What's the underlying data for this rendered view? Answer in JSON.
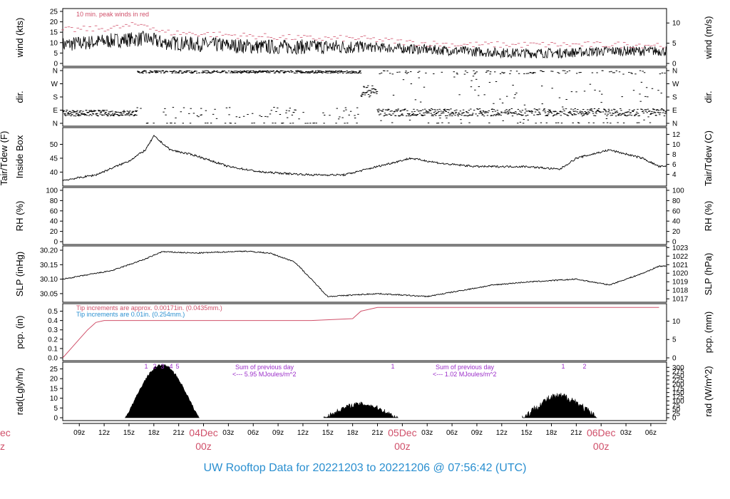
{
  "colors": {
    "peak": "#d0506a",
    "line": "#000000",
    "precip_red": "#d0506a",
    "precip_blue": "#2a8fd0",
    "purple": "#9b2ec9",
    "title": "#2a8fd0",
    "date": "#d0506a"
  },
  "footer": {
    "text": "UW Rooftop Data for 20221203  to  20221206 @ 07:56:42  (UTC)"
  },
  "x_axis": {
    "hour_labels": [
      "09z",
      "12z",
      "15z",
      "18z",
      "21z",
      "03z",
      "06z",
      "09z",
      "12z",
      "15z",
      "18z",
      "21z",
      "03z",
      "06z",
      "09z",
      "12z",
      "15z",
      "18z",
      "21z",
      "03z",
      "06z"
    ],
    "dates": [
      {
        "day": "04Dec",
        "sub": "00z"
      },
      {
        "day": "05Dec",
        "sub": "00z"
      },
      {
        "day": "06Dec",
        "sub": "00z"
      }
    ],
    "left_partial": {
      "day": "ec",
      "sub": "z"
    }
  },
  "panels": {
    "wind": {
      "ylabel_left": "wind (kts)",
      "ylabel_right": "wind (m/s)",
      "left_ticks": [
        "0",
        "5",
        "10",
        "15",
        "20",
        "25"
      ],
      "right_ticks": [
        "0",
        "5",
        "10"
      ],
      "note": "10 min. peak winds in red"
    },
    "dir": {
      "ylabel_left": "dir.",
      "ylabel_right": "dir.",
      "ticks": [
        "N",
        "E",
        "S",
        "W",
        "N"
      ]
    },
    "temp": {
      "ylabel_left_1": "Tair/Tdew (F)",
      "ylabel_left_2": "Inside Box",
      "ylabel_right": "Tair/Tdew (C)",
      "left_ticks": [
        "40",
        "45",
        "50"
      ],
      "right_ticks": [
        "4",
        "6",
        "8",
        "10",
        "12"
      ]
    },
    "rh": {
      "ylabel_left": "RH (%)",
      "ylabel_right": "RH (%)",
      "ticks": [
        "0",
        "20",
        "40",
        "60",
        "80",
        "100"
      ]
    },
    "slp": {
      "ylabel_left": "SLP (inHg)",
      "ylabel_right": "SLP (hPa)",
      "left_ticks": [
        "30.05",
        "30.10",
        "30.15",
        "30.20"
      ],
      "right_ticks": [
        "1017",
        "1018",
        "1019",
        "1020",
        "1021",
        "1022",
        "1023"
      ]
    },
    "pcp": {
      "ylabel_left": "pcp. (in)",
      "ylabel_right": "pcp. (mm)",
      "left_ticks": [
        "0.0",
        "0.1",
        "0.2",
        "0.3",
        "0.4",
        "0.5"
      ],
      "right_ticks": [
        "0",
        "5",
        "10"
      ],
      "note_red": "Tip increments are approx. 0.00171in. (0.0435mm.)",
      "note_blue": "Tip increments are 0.01in. (0.254mm.)"
    },
    "rad": {
      "ylabel_left": "rad(Lgly/hr)",
      "ylabel_right": "rad (W/m^2)",
      "left_ticks": [
        "0",
        "5",
        "10",
        "15",
        "20",
        "25"
      ],
      "right_ticks": [
        "0",
        "25",
        "50",
        "75",
        "100",
        "125",
        "150",
        "175",
        "200",
        "225",
        "250",
        "275",
        "300"
      ],
      "sum_label": "Sum of previous day",
      "sums": [
        "<--- 5.95 MJoules/m^2",
        "<--- 1.02 MJoules/m^2"
      ],
      "day1_markers": [
        "1",
        "2",
        "3",
        "4",
        "5"
      ],
      "day2_markers": [
        "1"
      ],
      "day3_markers": [
        "1",
        "2"
      ]
    }
  },
  "chart_data": {
    "type": "line",
    "title": "UW Rooftop Data for 20221203  to  20221206 @ 07:56:42  (UTC)",
    "x_range_hours_utc": [
      "2022-12-03 07:00",
      "2022-12-06 07:56"
    ],
    "series": [
      {
        "name": "wind (kts)",
        "time_hours_from_start": [
          0,
          6,
          10,
          12,
          18,
          24,
          30,
          36,
          42,
          48,
          54,
          60,
          66,
          72
        ],
        "values": [
          9,
          11,
          12,
          10,
          9,
          8,
          8,
          8,
          7,
          6,
          5,
          5,
          6,
          6
        ],
        "ylim": [
          0,
          25
        ]
      },
      {
        "name": "10 min. peak winds",
        "time_hours_from_start": [
          0,
          6,
          10,
          12,
          18,
          24,
          30,
          36,
          42,
          48,
          54,
          60,
          66,
          72
        ],
        "values": [
          16,
          17,
          19,
          15,
          14,
          13,
          12,
          12,
          10,
          9,
          9,
          9,
          9,
          9
        ]
      },
      {
        "name": "Tair/Tdew (F)",
        "time_hours_from_start": [
          0,
          4,
          8,
          10,
          11,
          13,
          16,
          20,
          24,
          30,
          34,
          38,
          42,
          46,
          50,
          56,
          60,
          62,
          66,
          70,
          72
        ],
        "values": [
          37,
          39,
          44,
          48,
          53,
          48,
          46,
          42,
          40,
          39,
          39,
          42,
          45,
          43,
          42,
          42,
          41,
          45,
          48,
          45,
          42
        ],
        "ylim": [
          36,
          55
        ]
      },
      {
        "name": "SLP (inHg)",
        "time_hours_from_start": [
          0,
          6,
          10,
          12,
          16,
          22,
          25,
          28,
          32,
          38,
          44,
          48,
          52,
          56,
          62,
          66,
          70,
          72
        ],
        "values": [
          30.1,
          30.13,
          30.17,
          30.195,
          30.19,
          30.197,
          30.19,
          30.16,
          30.04,
          30.05,
          30.04,
          30.06,
          30.08,
          30.09,
          30.1,
          30.08,
          30.12,
          30.145
        ],
        "ylim": [
          30.03,
          30.21
        ]
      },
      {
        "name": "pcp. (in)",
        "time_hours_from_start": [
          0,
          1,
          2,
          3,
          4,
          5,
          6,
          8,
          30,
          35,
          36,
          38,
          42,
          72
        ],
        "values": [
          0.0,
          0.1,
          0.2,
          0.3,
          0.38,
          0.4,
          0.4,
          0.4,
          0.4,
          0.42,
          0.5,
          0.54,
          0.54,
          0.54
        ],
        "ylim": [
          0,
          0.55
        ]
      },
      {
        "name": "rad (Lgly/hr)",
        "days": [
          {
            "start": 7.5,
            "end": 16.5,
            "peak": 27
          },
          {
            "start": 31.5,
            "end": 40.5,
            "peak": 7
          },
          {
            "start": 55.5,
            "end": 64.5,
            "peak": 11
          }
        ],
        "ylim": [
          0,
          27
        ]
      }
    ]
  }
}
